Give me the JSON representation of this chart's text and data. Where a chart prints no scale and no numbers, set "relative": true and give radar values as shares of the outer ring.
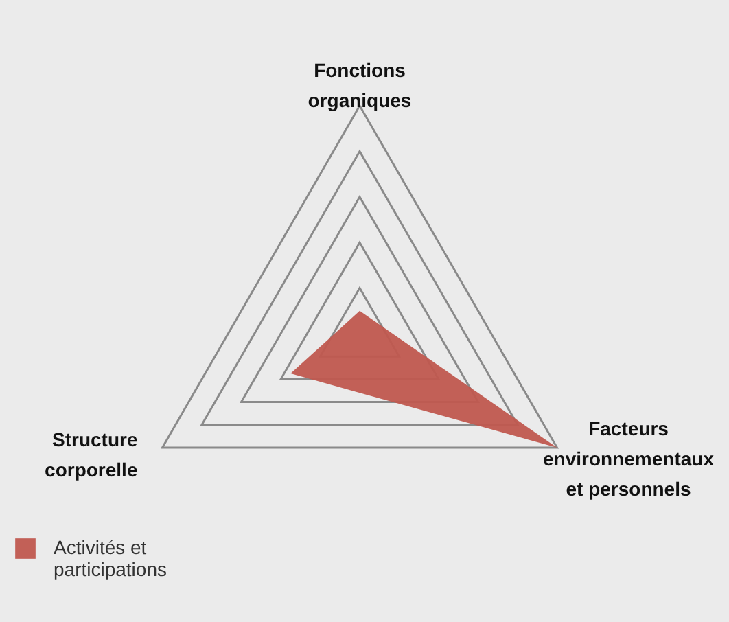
{
  "chart_data": {
    "type": "radar",
    "relative": true,
    "categories": [
      "Fonctions organiques",
      "Facteurs environnementaux et personnels",
      "Structure corporelle"
    ],
    "series": [
      {
        "name": "Activités et participations",
        "color": "#c0584f",
        "values": [
          0.1,
          1,
          0.35
        ]
      }
    ],
    "grid": true,
    "legend": "bottom left"
  }
}
